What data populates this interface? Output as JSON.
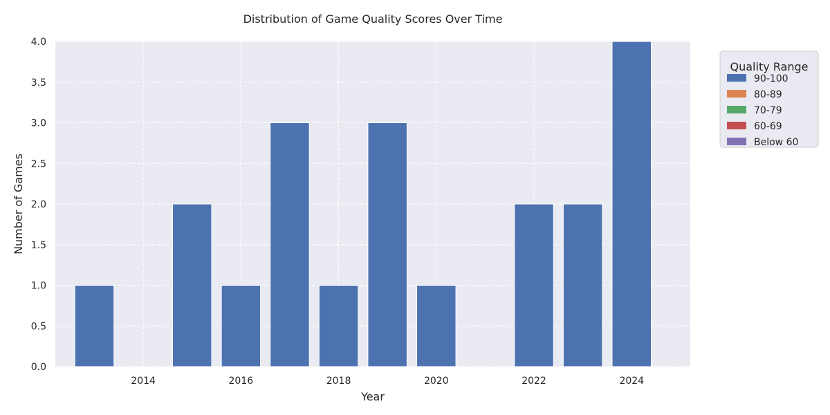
{
  "chart_data": {
    "type": "bar",
    "stacked": true,
    "title": "Distribution of Game Quality Scores Over Time",
    "xlabel": "Year",
    "ylabel": "Number of Games",
    "x": [
      2013,
      2014,
      2015,
      2016,
      2017,
      2018,
      2019,
      2020,
      2021,
      2022,
      2023,
      2024
    ],
    "xticks": [
      2014,
      2016,
      2018,
      2020,
      2022,
      2024
    ],
    "xlim": [
      2012.2,
      2025.2
    ],
    "ylim": [
      0,
      4
    ],
    "yticks": [
      "0.0",
      "0.5",
      "1.0",
      "1.5",
      "2.0",
      "2.5",
      "3.0",
      "3.5",
      "4.0"
    ],
    "grid": true,
    "legend_title": "Quality Range",
    "legend_position": "outside top-right",
    "series": [
      {
        "name": "90-100",
        "color": "#4c72b0",
        "values": [
          1,
          0,
          2,
          1,
          3,
          1,
          3,
          1,
          0,
          2,
          2,
          4
        ]
      },
      {
        "name": "80-89",
        "color": "#dd8452",
        "values": [
          0,
          0,
          0,
          0,
          0,
          0,
          0,
          0,
          0,
          0,
          0,
          0
        ]
      },
      {
        "name": "70-79",
        "color": "#55a868",
        "values": [
          0,
          0,
          0,
          0,
          0,
          0,
          0,
          0,
          0,
          0,
          0,
          0
        ]
      },
      {
        "name": "60-69",
        "color": "#c44e52",
        "values": [
          0,
          0,
          0,
          0,
          0,
          0,
          0,
          0,
          0,
          0,
          0,
          0
        ]
      },
      {
        "name": "Below 60",
        "color": "#8172b3",
        "values": [
          0,
          0,
          0,
          0,
          0,
          0,
          0,
          0,
          0,
          0,
          0,
          0
        ]
      }
    ]
  }
}
